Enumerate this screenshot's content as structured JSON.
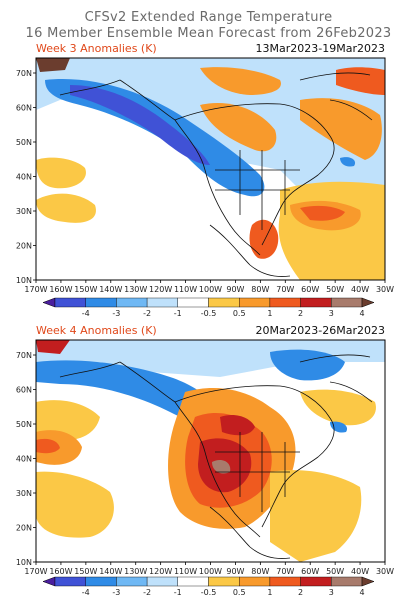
{
  "header": {
    "title_line1": "CFSv2 Extended Range Temperature",
    "title_line2": "16 Member Ensemble Mean Forecast from 26Feb2023"
  },
  "panels": [
    {
      "label": "Week 3 Anomalies (K)",
      "dates": "13Mar2023-19Mar2023"
    },
    {
      "label": "Week 4 Anomalies (K)",
      "dates": "20Mar2023-26Mar2023"
    }
  ],
  "lat_labels": [
    "70N",
    "60N",
    "50N",
    "40N",
    "30N",
    "20N",
    "10N"
  ],
  "lon_labels": [
    "170W",
    "160W",
    "150W",
    "140W",
    "130W",
    "120W",
    "110W",
    "100W",
    "90W",
    "80W",
    "70W",
    "60W",
    "50W",
    "40W",
    "30W"
  ],
  "colorbar": {
    "ticks": [
      "-4",
      "-3",
      "-2",
      "-1",
      "-0.5",
      "0.5",
      "1",
      "2",
      "3",
      "4"
    ],
    "colors": [
      "#4a1e9e",
      "#4052d6",
      "#2f8be6",
      "#6fb8f4",
      "#bfe1fb",
      "#ffffff",
      "#fbc846",
      "#f89a2c",
      "#ef5a1f",
      "#c21e1f",
      "#a87b6c",
      "#6b3d2e"
    ]
  }
}
